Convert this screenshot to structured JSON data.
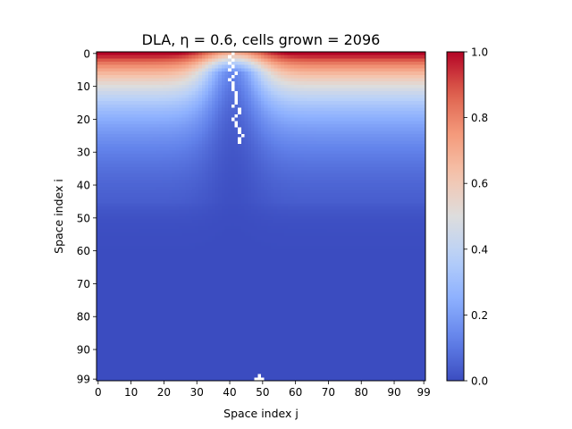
{
  "chart_data": {
    "type": "heatmap",
    "title": "DLA, η = 0.6, cells grown = 2096",
    "xlabel": "Space index j",
    "ylabel": "Space index i",
    "grid_size": [
      100,
      100
    ],
    "xlim": [
      0,
      99
    ],
    "ylim": [
      99,
      0
    ],
    "x_ticks": [
      "0",
      "10",
      "20",
      "30",
      "40",
      "50",
      "60",
      "70",
      "80",
      "90",
      "99"
    ],
    "y_ticks": [
      "0",
      "10",
      "20",
      "30",
      "40",
      "50",
      "60",
      "70",
      "80",
      "90",
      "99"
    ],
    "colormap": "coolwarm",
    "colorbar": {
      "range": [
        0.0,
        1.0
      ],
      "ticks": [
        "0.0",
        "0.2",
        "0.4",
        "0.6",
        "0.8",
        "1.0"
      ]
    },
    "cluster": {
      "color": "#ffffff",
      "cells_grown": 2096,
      "seed_cell": [
        99,
        50
      ],
      "top_reach": [
        0,
        40
      ]
    },
    "grid": false
  }
}
